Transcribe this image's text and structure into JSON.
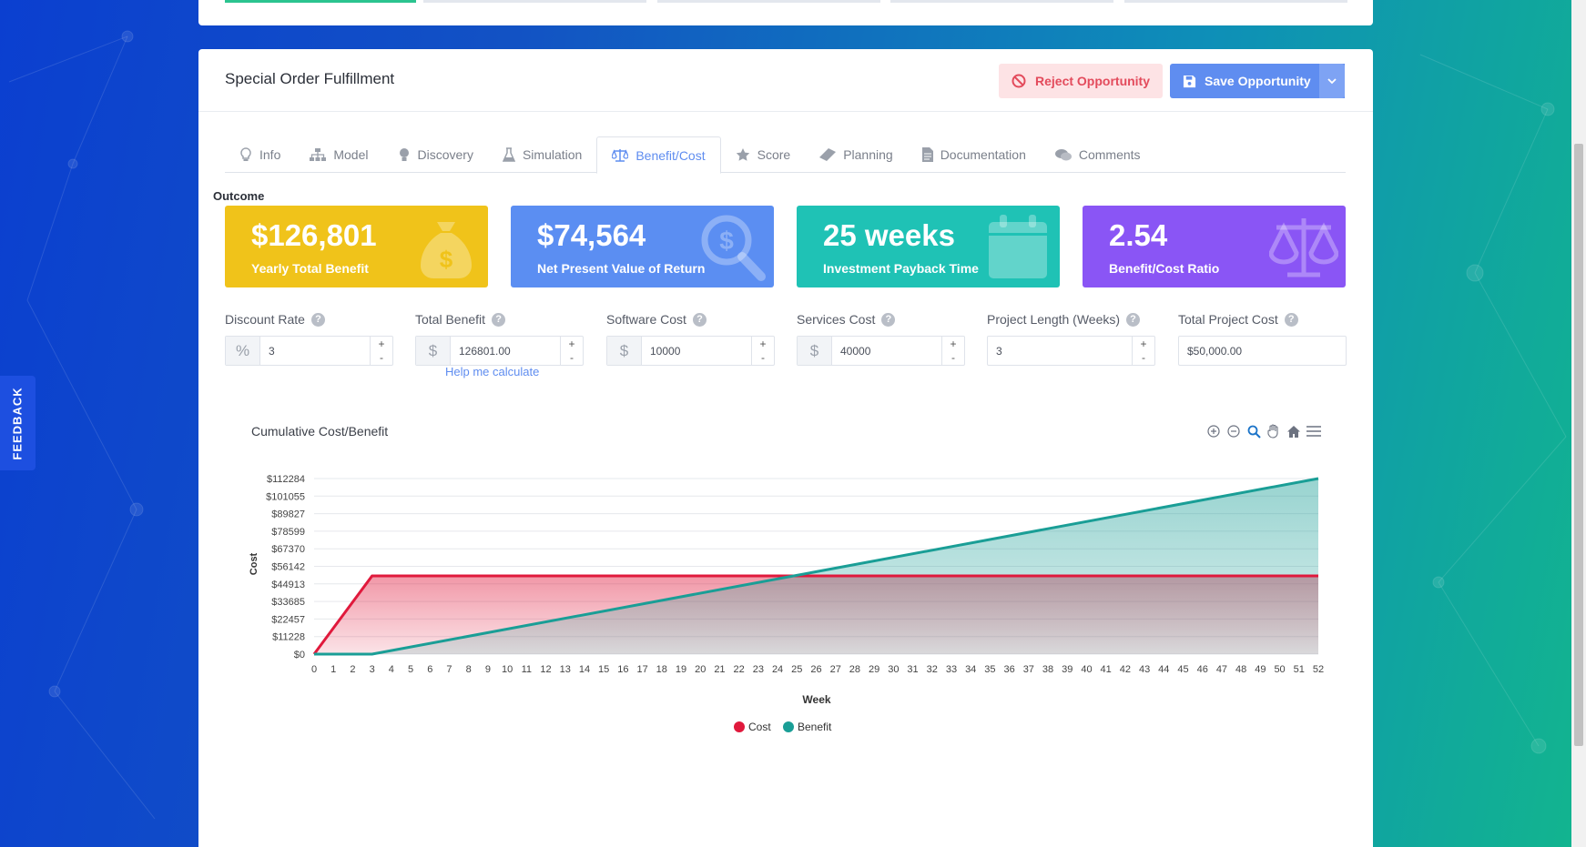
{
  "page": {
    "title": "Special Order Fulfillment",
    "reject_label": "Reject Opportunity",
    "save_label": "Save Opportunity"
  },
  "tabs": [
    {
      "label": "Info",
      "icon": "lightbulb-icon"
    },
    {
      "label": "Model",
      "icon": "sitemap-icon"
    },
    {
      "label": "Discovery",
      "icon": "bulb-icon"
    },
    {
      "label": "Simulation",
      "icon": "flask-icon"
    },
    {
      "label": "Benefit/Cost",
      "icon": "balance-scale-icon",
      "active": true
    },
    {
      "label": "Score",
      "icon": "star-icon"
    },
    {
      "label": "Planning",
      "icon": "ruler-icon"
    },
    {
      "label": "Documentation",
      "icon": "document-icon"
    },
    {
      "label": "Comments",
      "icon": "comments-icon"
    }
  ],
  "outcome": {
    "label": "Outcome",
    "cards": [
      {
        "value": "$126,801",
        "label": "Yearly Total Benefit",
        "color": "#f0c31a",
        "icon": "money-bag-icon"
      },
      {
        "value": "$74,564",
        "label": "Net Present Value of Return",
        "color": "#5b8ef2",
        "icon": "search-dollar-icon"
      },
      {
        "value": "25 weeks",
        "label": "Investment Payback Time",
        "color": "#1fc2b5",
        "icon": "calendar-icon"
      },
      {
        "value": "2.54",
        "label": "Benefit/Cost Ratio",
        "color": "#8a55f5",
        "icon": "balance-scale-icon"
      }
    ]
  },
  "fields": [
    {
      "label": "Discount Rate",
      "addon": "%",
      "value": "3",
      "stepper": true
    },
    {
      "label": "Total Benefit",
      "addon": "$",
      "value": "126801.00",
      "stepper": true
    },
    {
      "label": "Software Cost",
      "addon": "$",
      "value": "10000",
      "stepper": true
    },
    {
      "label": "Services Cost",
      "addon": "$",
      "value": "40000",
      "stepper": true
    },
    {
      "label": "Project Length (Weeks)",
      "addon": "",
      "value": "3",
      "stepper": true
    },
    {
      "label": "Total Project Cost",
      "addon": "",
      "value": "$50,000.00",
      "stepper": false
    }
  ],
  "help_link": "Help me calculate",
  "stepper": {
    "plus": "+",
    "minus": "-"
  },
  "feedback_label": "FEEDBACK",
  "chart_data": {
    "type": "area",
    "title": "Cumulative Cost/Benefit",
    "xlabel": "Week",
    "ylabel": "Cost",
    "x": [
      0,
      1,
      2,
      3,
      4,
      5,
      6,
      7,
      8,
      9,
      10,
      11,
      12,
      13,
      14,
      15,
      16,
      17,
      18,
      19,
      20,
      21,
      22,
      23,
      24,
      25,
      26,
      27,
      28,
      29,
      30,
      31,
      32,
      33,
      34,
      35,
      36,
      37,
      38,
      39,
      40,
      41,
      42,
      43,
      44,
      45,
      46,
      47,
      48,
      49,
      50,
      51,
      52
    ],
    "ytick_labels": [
      "$0",
      "$11228",
      "$22457",
      "$33685",
      "$44913",
      "$56142",
      "$67370",
      "$78599",
      "$89827",
      "$101055",
      "$112284"
    ],
    "ylim": [
      0,
      112284
    ],
    "series": [
      {
        "name": "Cost",
        "color": "#e0193c",
        "points": [
          [
            0,
            0
          ],
          [
            3,
            50000
          ],
          [
            52,
            50000
          ]
        ]
      },
      {
        "name": "Benefit",
        "color": "#1a9e96",
        "points": [
          [
            0,
            0
          ],
          [
            3,
            0
          ],
          [
            52,
            112284
          ]
        ]
      }
    ],
    "legend": "bottom",
    "grid": true
  }
}
